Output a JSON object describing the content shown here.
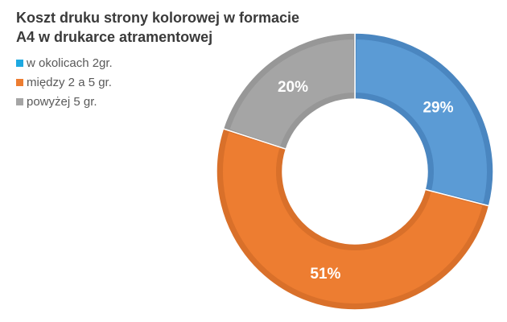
{
  "chart_data": {
    "type": "pie",
    "title": "Koszt druku strony kolorowej w formacie A4 w drukarce atramentowej",
    "categories": [
      "w okolicach 2gr.",
      "między 2 a 5 gr.",
      "powyżej 5 gr."
    ],
    "values": [
      29,
      51,
      20
    ],
    "labels": [
      "29%",
      "51%",
      "20%"
    ],
    "legend_colors": [
      "#1ea9e1",
      "#ed7d31",
      "#a5a5a5"
    ],
    "slice_colors": [
      "#5b9bd5",
      "#ed7d31",
      "#a5a5a5"
    ],
    "slice_edge_colors": [
      "#4a86c0",
      "#d9702a",
      "#979797"
    ],
    "legend_position": "top-left",
    "donut": true
  }
}
